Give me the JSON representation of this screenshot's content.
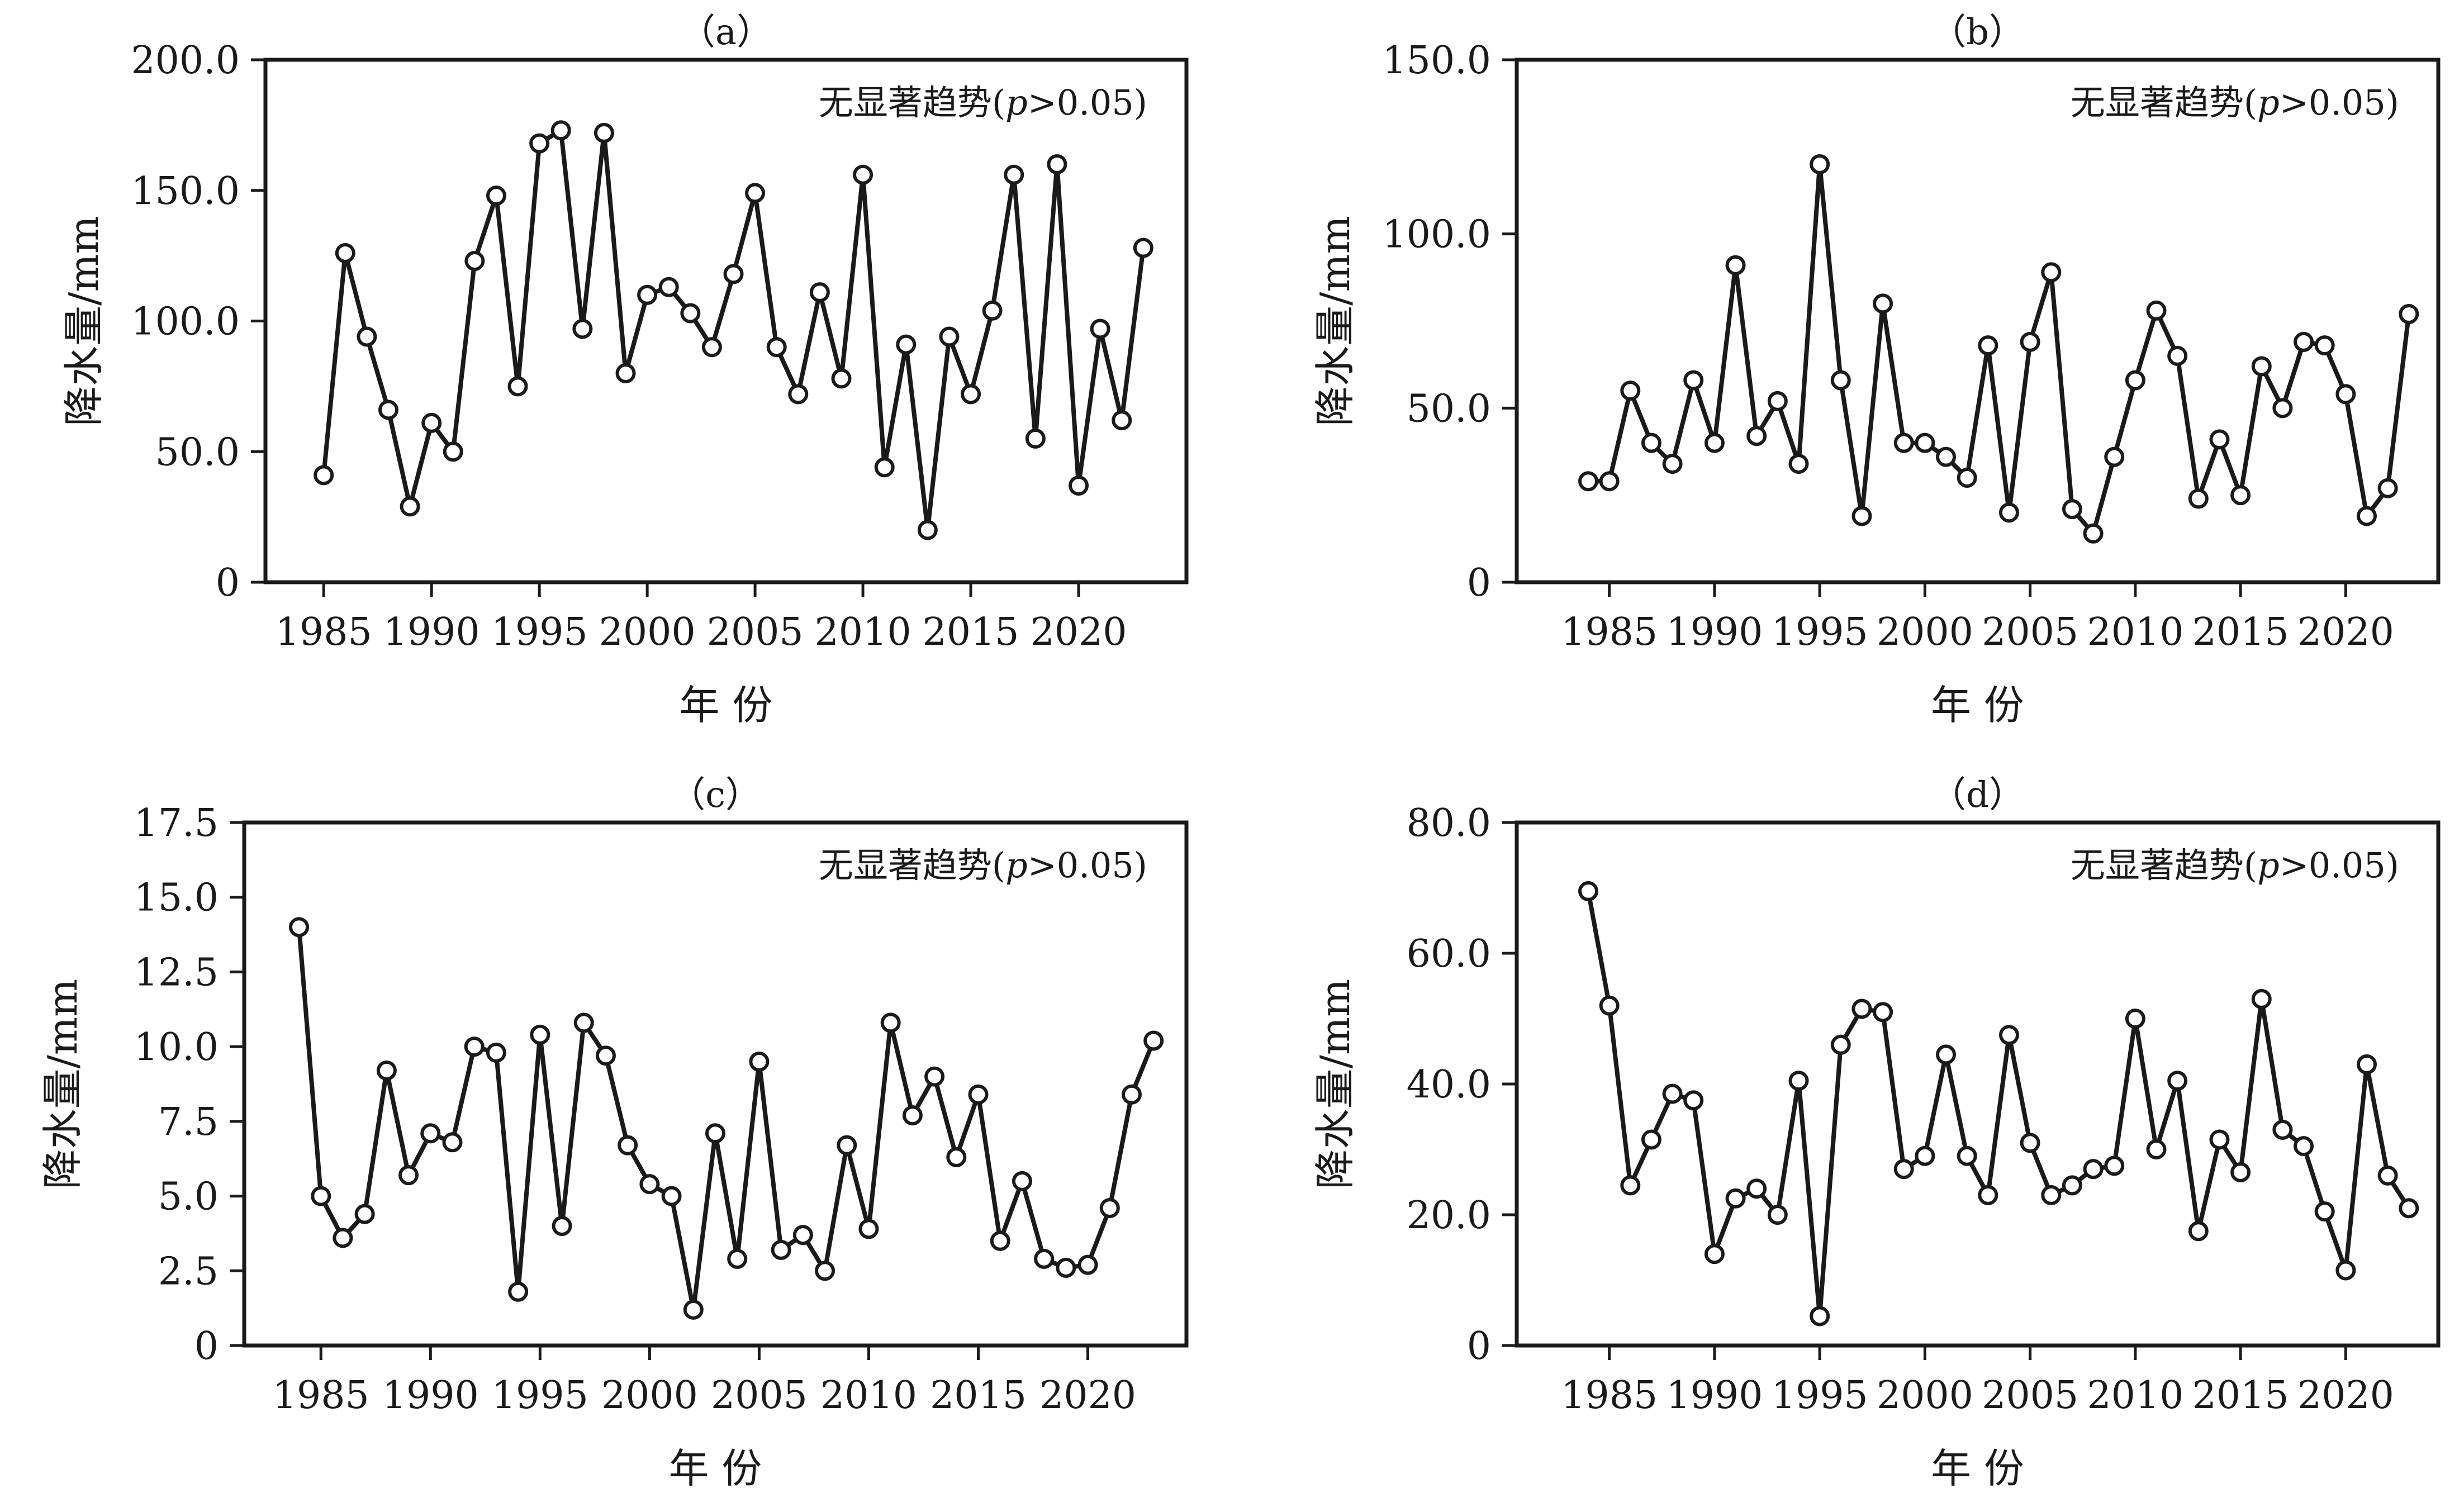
{
  "chart_data": [
    {
      "type": "line",
      "panel_label": "（a）",
      "annotation": "无显著趋势(p>0.05)",
      "xlabel": "年  份",
      "ylabel": "降水量/mm",
      "xlim": [
        1982.3,
        2025.0
      ],
      "ylim": [
        0,
        200
      ],
      "xticks": [
        1985,
        1990,
        1995,
        2000,
        2005,
        2010,
        2015,
        2020
      ],
      "yticks": [
        0,
        50,
        100,
        150,
        200
      ],
      "ytick_labels": [
        "0",
        "50.0",
        "100.0",
        "150.0",
        "200.0"
      ],
      "series": [
        {
          "name": "precipitation",
          "x": [
            1985,
            1986,
            1987,
            1988,
            1989,
            1990,
            1991,
            1992,
            1993,
            1994,
            1995,
            1996,
            1997,
            1998,
            1999,
            2000,
            2001,
            2002,
            2003,
            2004,
            2005,
            2006,
            2007,
            2008,
            2009,
            2010,
            2011,
            2012,
            2013,
            2014,
            2015,
            2016,
            2017,
            2018,
            2019,
            2020,
            2021,
            2022,
            2023
          ],
          "values": [
            41,
            126,
            94,
            66,
            29,
            61,
            50,
            123,
            148,
            75,
            168,
            173,
            97,
            172,
            80,
            110,
            113,
            103,
            90,
            118,
            149,
            90,
            72,
            111,
            78,
            156,
            44,
            91,
            20,
            94,
            72,
            104,
            156,
            55,
            160,
            37,
            97,
            62,
            128
          ]
        }
      ]
    },
    {
      "type": "line",
      "panel_label": "（b）",
      "annotation": "无显著趋势(p>0.05)",
      "xlabel": "年  份",
      "ylabel": "降水量/mm",
      "xlim": [
        1980.6,
        2024.4
      ],
      "ylim": [
        0,
        150
      ],
      "xticks": [
        1985,
        1990,
        1995,
        2000,
        2005,
        2010,
        2015,
        2020
      ],
      "yticks": [
        0,
        50,
        100,
        150
      ],
      "ytick_labels": [
        "0",
        "50.0",
        "100.0",
        "150.0"
      ],
      "series": [
        {
          "name": "precipitation",
          "x": [
            1984,
            1985,
            1986,
            1987,
            1988,
            1989,
            1990,
            1991,
            1992,
            1993,
            1994,
            1995,
            1996,
            1997,
            1998,
            1999,
            2000,
            2001,
            2002,
            2003,
            2004,
            2005,
            2006,
            2007,
            2008,
            2009,
            2010,
            2011,
            2012,
            2013,
            2014,
            2015,
            2016,
            2017,
            2018,
            2019,
            2020,
            2021,
            2022,
            2023
          ],
          "values": [
            29,
            29,
            55,
            40,
            34,
            58,
            40,
            91,
            42,
            52,
            34,
            120,
            58,
            19,
            80,
            40,
            40,
            36,
            30,
            68,
            20,
            69,
            89,
            21,
            14,
            36,
            58,
            78,
            65,
            24,
            41,
            25,
            62,
            50,
            69,
            68,
            54,
            19,
            27,
            77
          ]
        }
      ]
    },
    {
      "type": "line",
      "panel_label": "（c）",
      "annotation": "无显著趋势(p>0.05)",
      "xlabel": "年  份",
      "ylabel": "降水量/mm",
      "xlim": [
        1981.5,
        2024.5
      ],
      "ylim": [
        0,
        17.5
      ],
      "xticks": [
        1985,
        1990,
        1995,
        2000,
        2005,
        2010,
        2015,
        2020
      ],
      "yticks": [
        0,
        2.5,
        5.0,
        7.5,
        10.0,
        12.5,
        15.0,
        17.5
      ],
      "ytick_labels": [
        "0",
        "2.5",
        "5.0",
        "7.5",
        "10.0",
        "12.5",
        "15.0",
        "17.5"
      ],
      "series": [
        {
          "name": "precipitation",
          "x": [
            1984,
            1985,
            1986,
            1987,
            1988,
            1989,
            1990,
            1991,
            1992,
            1993,
            1994,
            1995,
            1996,
            1997,
            1998,
            1999,
            2000,
            2001,
            2002,
            2003,
            2004,
            2005,
            2006,
            2007,
            2008,
            2009,
            2010,
            2011,
            2012,
            2013,
            2014,
            2015,
            2016,
            2017,
            2018,
            2019,
            2020,
            2021,
            2022,
            2023
          ],
          "values": [
            14.0,
            5.0,
            3.6,
            4.4,
            9.2,
            5.7,
            7.1,
            6.8,
            10.0,
            9.8,
            1.8,
            10.4,
            4.0,
            10.8,
            9.7,
            6.7,
            5.4,
            5.0,
            1.2,
            7.1,
            2.9,
            9.5,
            3.2,
            3.7,
            2.5,
            6.7,
            3.9,
            10.8,
            7.7,
            9.0,
            6.3,
            8.4,
            3.5,
            5.5,
            2.9,
            2.6,
            2.7,
            4.6,
            8.4,
            10.2
          ]
        }
      ]
    },
    {
      "type": "line",
      "panel_label": "（d）",
      "annotation": "无显著趋势(p>0.05)",
      "xlabel": "年  份",
      "ylabel": "降水量/mm",
      "xlim": [
        1980.6,
        2024.4
      ],
      "ylim": [
        0,
        80
      ],
      "xticks": [
        1985,
        1990,
        1995,
        2000,
        2005,
        2010,
        2015,
        2020
      ],
      "yticks": [
        0,
        20,
        40,
        60,
        80
      ],
      "ytick_labels": [
        "0",
        "20.0",
        "40.0",
        "60.0",
        "80.0"
      ],
      "series": [
        {
          "name": "precipitation",
          "x": [
            1984,
            1985,
            1986,
            1987,
            1988,
            1989,
            1990,
            1991,
            1992,
            1993,
            1994,
            1995,
            1996,
            1997,
            1998,
            1999,
            2000,
            2001,
            2002,
            2003,
            2004,
            2005,
            2006,
            2007,
            2008,
            2009,
            2010,
            2011,
            2012,
            2013,
            2014,
            2015,
            2016,
            2017,
            2018,
            2019,
            2020,
            2021,
            2022,
            2023
          ],
          "values": [
            69.5,
            52,
            24.5,
            31.5,
            38.5,
            37.5,
            14,
            22.5,
            24,
            20,
            40.5,
            4.5,
            46,
            51.5,
            51,
            27,
            29,
            44.5,
            29,
            23,
            47.5,
            31,
            23,
            24.5,
            27,
            27.5,
            50,
            30,
            40.5,
            17.5,
            31.5,
            26.5,
            53,
            33,
            30.5,
            20.5,
            11.5,
            43,
            26,
            21
          ]
        }
      ]
    }
  ]
}
